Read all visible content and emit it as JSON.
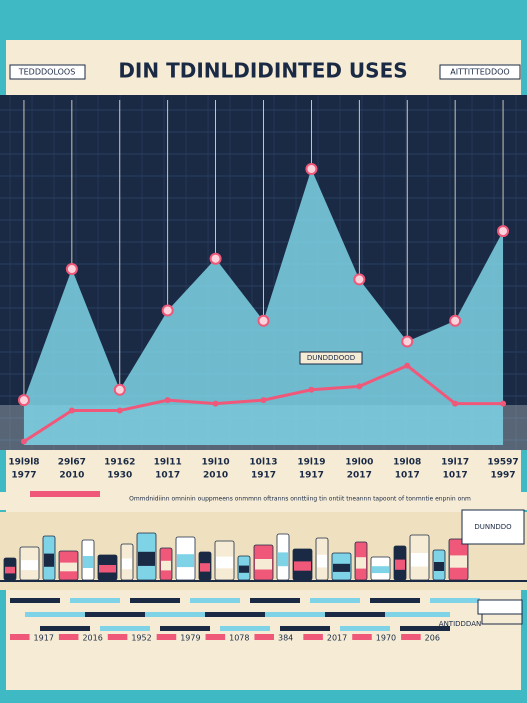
{
  "chart_data": {
    "type": "area",
    "title": "DIN TDINLDIDINTED USES",
    "corner_labels": [
      "TEDDDOLOOS",
      "AITTITTEDDOO"
    ],
    "annotations": [
      "DUNDDDOOD",
      "DUNNDDO",
      "ANTIDDDAN"
    ],
    "caption": "Ommdnidiinn omninin ouppmeens onmmnn oftranns onnttiing tin ontiit tneannn tapoont of tonmntie enpnin onm",
    "categories": [
      [
        "19l9l8",
        "1977"
      ],
      [
        "29l67",
        "2010"
      ],
      [
        "19162",
        "1930"
      ],
      [
        "19l11",
        "1017"
      ],
      [
        "19l10",
        "2010"
      ],
      [
        "10l13",
        "1917"
      ],
      [
        "19l19",
        "1917"
      ],
      [
        "19l00",
        "2017"
      ],
      [
        "19l08",
        "1017"
      ],
      [
        "19l17",
        "1017"
      ],
      [
        "19597",
        "1997"
      ]
    ],
    "series": [
      {
        "name": "area",
        "color": "#7fd3e6",
        "values": [
          13,
          51,
          16,
          39,
          54,
          36,
          80,
          48,
          30,
          36,
          62
        ]
      },
      {
        "name": "line",
        "color": "#f0587a",
        "values": [
          1,
          10,
          10,
          13,
          12,
          13,
          16,
          17,
          23,
          12,
          12
        ]
      }
    ],
    "ylim": [
      0,
      100
    ],
    "bottom_years": [
      "1917",
      "2016",
      "1952",
      "1979",
      "1078",
      "384",
      "2017",
      "1970",
      "206"
    ]
  }
}
